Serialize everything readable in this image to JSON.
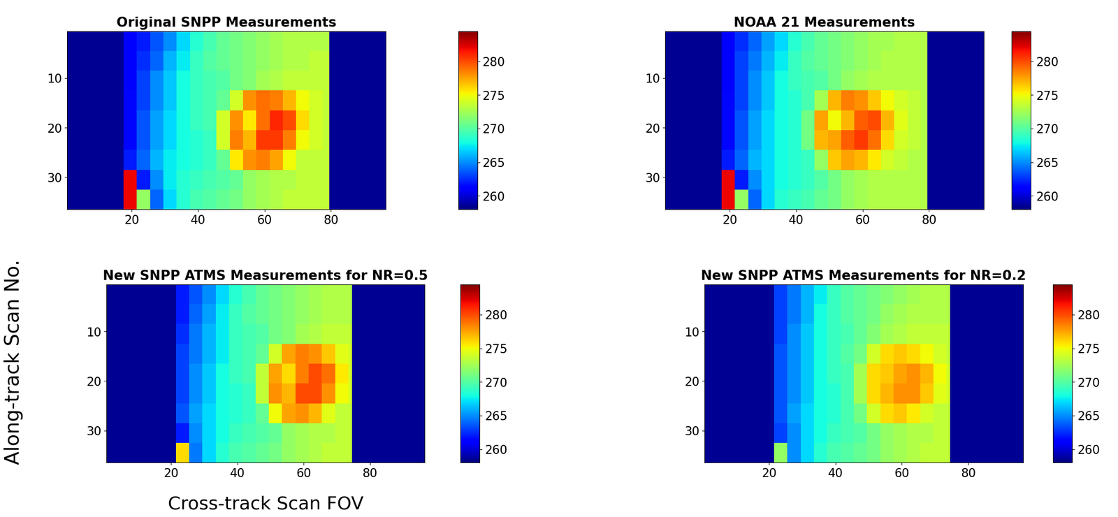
{
  "figure": {
    "ylabel": "Along-track Scan No.",
    "xlabel": "Cross-track Scan FOV"
  },
  "chart_data": [
    {
      "type": "heatmap",
      "title": "Original SNPP Measurements",
      "xlim": [
        0.5,
        96.5
      ],
      "ylim": [
        36.5,
        0.5
      ],
      "xticks": [
        20,
        40,
        60,
        80
      ],
      "yticks": [
        10,
        20,
        30
      ],
      "x_edges": [
        0.5,
        17.5,
        21.5,
        25.5,
        29.5,
        33.5,
        37.5,
        41.5,
        45.5,
        49.5,
        53.5,
        57.5,
        61.5,
        65.5,
        69.5,
        73.5,
        77.5,
        79.5,
        96.5
      ],
      "y_edges": [
        0.5,
        4.5,
        8.5,
        12.5,
        16.5,
        20.5,
        24.5,
        28.5,
        32.5,
        36.5
      ],
      "cells": [
        [
          258.5,
          261,
          262,
          263.5,
          265,
          267,
          268.5,
          269.5,
          270.5,
          271,
          271.5,
          272,
          272.5,
          273,
          273,
          273,
          273,
          258.5
        ],
        [
          258.5,
          261,
          262.5,
          264,
          266,
          267.5,
          269,
          270,
          270.5,
          271,
          271.5,
          272,
          272.5,
          273,
          273,
          273.5,
          273.5,
          258.5
        ],
        [
          258.5,
          261,
          263,
          265,
          266.5,
          268,
          269,
          269.5,
          270,
          271,
          271.5,
          272.5,
          273,
          273.5,
          273.5,
          273.5,
          273.5,
          258.5
        ],
        [
          258.5,
          261.5,
          263,
          265,
          266.5,
          268,
          269,
          269.5,
          270.5,
          274,
          278,
          279,
          278.5,
          277,
          275,
          274,
          273.5,
          258.5
        ],
        [
          258.5,
          261.5,
          263.5,
          265.5,
          267,
          268,
          269,
          269.5,
          274,
          278,
          275.5,
          279,
          281,
          280,
          276,
          274,
          273.5,
          258.5
        ],
        [
          258.5,
          261.5,
          263.5,
          265.5,
          267,
          268,
          268.5,
          269,
          274,
          278.5,
          277,
          280.5,
          280.5,
          278.5,
          275,
          274,
          273.5,
          258.5
        ],
        [
          258.5,
          262,
          264,
          266,
          267.5,
          268,
          268.5,
          269,
          270.5,
          275.5,
          278,
          278.5,
          277.5,
          275,
          273.5,
          273.5,
          273.5,
          258.5
        ],
        [
          258.5,
          282,
          262,
          265,
          267.5,
          268.5,
          269,
          269.5,
          270,
          270.5,
          272,
          272.5,
          273,
          273,
          273.5,
          273.5,
          273.5,
          258.5
        ],
        [
          258.5,
          282,
          272,
          264,
          267,
          268.5,
          269.5,
          270,
          270.5,
          271,
          272,
          272.5,
          273,
          273.5,
          273.5,
          273.5,
          273.5,
          258.5
        ]
      ],
      "colorbar_range": [
        258,
        284.5
      ],
      "colorbar_ticks": [
        260,
        265,
        270,
        275,
        280
      ]
    },
    {
      "type": "heatmap",
      "title": "NOAA 21 Measurements",
      "xlim": [
        0.5,
        96.5
      ],
      "ylim": [
        36.5,
        0.5
      ],
      "xticks": [
        20,
        40,
        60,
        80
      ],
      "yticks": [
        10,
        20,
        30
      ],
      "x_edges": [
        0.5,
        17.5,
        21.5,
        25.5,
        29.5,
        33.5,
        37.5,
        41.5,
        45.5,
        49.5,
        53.5,
        57.5,
        61.5,
        65.5,
        69.5,
        73.5,
        77.5,
        79.5,
        96.5
      ],
      "y_edges": [
        0.5,
        4.5,
        8.5,
        12.5,
        16.5,
        20.5,
        24.5,
        28.5,
        32.5,
        36.5
      ],
      "cells": [
        [
          258.5,
          261,
          262.5,
          264,
          265.5,
          267,
          268.5,
          269.5,
          270.5,
          271,
          271.5,
          272,
          272.5,
          272.5,
          273,
          273,
          273,
          258.5
        ],
        [
          258.5,
          261,
          263,
          264.5,
          266,
          267.5,
          269,
          270,
          270.5,
          271,
          271.5,
          272,
          272.5,
          273,
          273,
          273,
          273,
          258.5
        ],
        [
          258.5,
          261,
          263,
          265,
          266.5,
          268,
          269,
          269.5,
          270,
          271,
          272,
          272.5,
          273,
          273,
          273,
          273,
          273,
          258.5
        ],
        [
          258.5,
          261.5,
          263,
          265,
          266.5,
          268,
          268.5,
          269.5,
          272.5,
          277,
          278.5,
          278,
          276.5,
          275,
          274,
          273.5,
          273,
          258.5
        ],
        [
          258.5,
          261.5,
          263.5,
          265.5,
          267,
          268,
          268.5,
          271,
          277.5,
          275,
          277,
          279.5,
          280,
          277,
          274.5,
          273.5,
          273,
          258.5
        ],
        [
          258.5,
          261.5,
          263.5,
          265.5,
          267,
          268,
          268.5,
          271,
          277,
          277.5,
          279.5,
          280.5,
          279,
          276,
          274,
          273.5,
          273,
          258.5
        ],
        [
          258.5,
          262,
          264,
          266,
          267,
          268,
          268.5,
          269,
          272,
          276.5,
          277.5,
          277,
          275.5,
          274,
          273.5,
          273,
          273,
          258.5
        ],
        [
          258.5,
          282,
          262,
          265,
          267,
          268,
          268.5,
          269,
          270,
          271,
          272,
          272.5,
          273,
          273,
          273,
          273,
          273,
          258.5
        ],
        [
          258.5,
          282,
          272,
          264,
          267,
          268.5,
          269,
          269.5,
          270.5,
          271,
          272,
          272.5,
          273,
          273,
          273,
          273,
          273,
          258.5
        ]
      ],
      "colorbar_range": [
        258,
        284.5
      ],
      "colorbar_ticks": [
        260,
        265,
        270,
        275,
        280
      ]
    },
    {
      "type": "heatmap",
      "title": "New SNPP ATMS Measurements for NR=0.5",
      "xlim": [
        0.5,
        96.5
      ],
      "ylim": [
        36.5,
        0.5
      ],
      "xticks": [
        20,
        40,
        60,
        80
      ],
      "yticks": [
        10,
        20,
        30
      ],
      "x_edges": [
        0.5,
        21.5,
        25.5,
        29.5,
        33.5,
        37.5,
        41.5,
        45.5,
        49.5,
        53.5,
        57.5,
        61.5,
        65.5,
        69.5,
        73.5,
        74.5,
        96.5
      ],
      "y_edges": [
        0.5,
        4.5,
        8.5,
        12.5,
        16.5,
        20.5,
        24.5,
        28.5,
        32.5,
        36.5
      ],
      "cells": [
        [
          258.5,
          262,
          263.5,
          265,
          267,
          268.5,
          269.5,
          270.5,
          271,
          271.5,
          272,
          272.5,
          273,
          273,
          273,
          258.5
        ],
        [
          258.5,
          262,
          264,
          265.5,
          267.5,
          269,
          270,
          270.5,
          271,
          271.5,
          272,
          272.5,
          273,
          273,
          273,
          258.5
        ],
        [
          258.5,
          262.5,
          264.5,
          266,
          267.5,
          269,
          269.5,
          270,
          271,
          271.5,
          272.5,
          273,
          273.5,
          273.5,
          273.5,
          258.5
        ],
        [
          258.5,
          263,
          264.5,
          266,
          267.5,
          269,
          269.5,
          270.5,
          274,
          277.5,
          278.5,
          278,
          276.5,
          274.5,
          274,
          258.5
        ],
        [
          258.5,
          263,
          265,
          266.5,
          268,
          269,
          269.5,
          273.5,
          277.5,
          276,
          278.5,
          280,
          279,
          275.5,
          274,
          258.5
        ],
        [
          258.5,
          263,
          265,
          266.5,
          268,
          268.5,
          269,
          273.5,
          278,
          277,
          280,
          280,
          278,
          275,
          274,
          258.5
        ],
        [
          258.5,
          263.5,
          265.5,
          267,
          268,
          268.5,
          269,
          270.5,
          275,
          277.5,
          278,
          277,
          274.5,
          273.5,
          273.5,
          258.5
        ],
        [
          258.5,
          262,
          265,
          267,
          268,
          269,
          269.5,
          270,
          270.5,
          272,
          272.5,
          273,
          273,
          273.5,
          273.5,
          258.5
        ],
        [
          258.5,
          276,
          264.5,
          267,
          268.5,
          269.5,
          270,
          270.5,
          271,
          272,
          272.5,
          273,
          273.5,
          273.5,
          273.5,
          258.5
        ]
      ],
      "colorbar_range": [
        258,
        284.5
      ],
      "colorbar_ticks": [
        260,
        265,
        270,
        275,
        280
      ]
    },
    {
      "type": "heatmap",
      "title": "New SNPP ATMS Measurements for NR=0.2",
      "xlim": [
        0.5,
        96.5
      ],
      "ylim": [
        36.5,
        0.5
      ],
      "xticks": [
        20,
        40,
        60,
        80
      ],
      "yticks": [
        10,
        20,
        30
      ],
      "x_edges": [
        0.5,
        21.5,
        25.5,
        29.5,
        33.5,
        37.5,
        41.5,
        45.5,
        49.5,
        53.5,
        57.5,
        61.5,
        65.5,
        69.5,
        73.5,
        74.5,
        96.5
      ],
      "y_edges": [
        0.5,
        4.5,
        8.5,
        12.5,
        16.5,
        20.5,
        24.5,
        28.5,
        32.5,
        36.5
      ],
      "cells": [
        [
          258.5,
          263,
          264.5,
          266,
          267.5,
          269,
          270,
          270.5,
          271,
          271.5,
          272,
          272.5,
          273,
          273,
          273,
          258.5
        ],
        [
          258.5,
          263,
          264.5,
          266,
          268,
          269,
          270,
          270.5,
          271,
          272,
          272.5,
          273,
          273,
          273,
          273,
          258.5
        ],
        [
          258.5,
          263,
          265,
          266.5,
          268,
          269,
          269.5,
          270.5,
          271.5,
          272.5,
          273,
          273.5,
          273.5,
          273.5,
          273.5,
          258.5
        ],
        [
          258.5,
          263.5,
          265,
          266.5,
          268,
          269,
          270,
          271,
          274,
          276,
          276.5,
          276,
          275,
          274,
          273.5,
          258.5
        ],
        [
          258.5,
          263.5,
          265,
          266.5,
          268,
          269,
          269.5,
          272.5,
          276,
          276.5,
          277.5,
          278,
          277,
          275,
          274,
          258.5
        ],
        [
          258.5,
          263.5,
          265,
          266.5,
          268,
          268.5,
          269.5,
          272.5,
          276,
          277,
          278,
          278,
          276.5,
          274.5,
          274,
          258.5
        ],
        [
          258.5,
          263.5,
          265.5,
          267,
          268,
          268.5,
          269.5,
          271,
          274,
          276,
          276.5,
          275.5,
          274,
          273.5,
          273.5,
          258.5
        ],
        [
          258.5,
          263,
          265,
          267,
          268,
          269,
          269.5,
          270,
          271,
          272,
          272.5,
          273,
          273,
          273.5,
          273.5,
          258.5
        ],
        [
          258.5,
          272,
          265,
          267,
          268.5,
          269.5,
          270,
          270.5,
          271,
          272,
          272.5,
          273,
          273.5,
          273.5,
          273.5,
          258.5
        ]
      ],
      "colorbar_range": [
        258,
        284.5
      ],
      "colorbar_ticks": [
        260,
        265,
        270,
        275,
        280
      ]
    }
  ]
}
